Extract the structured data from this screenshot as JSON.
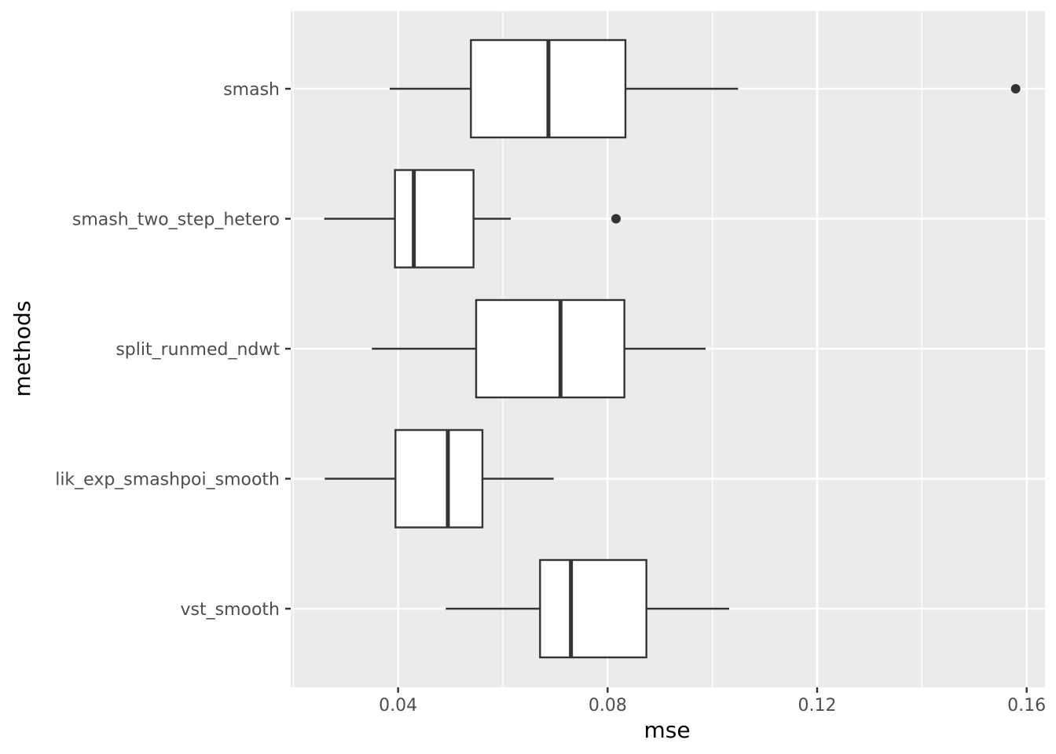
{
  "chart_data": {
    "type": "boxplot",
    "orientation": "horizontal",
    "xlabel": "mse",
    "ylabel": "methods",
    "xlim": [
      0.0195,
      0.1635
    ],
    "x_ticks": [
      0.04,
      0.08,
      0.12,
      0.16
    ],
    "x_tick_labels": [
      "0.04",
      "0.08",
      "0.12",
      "0.16"
    ],
    "grid": true,
    "categories": [
      "smash",
      "smash_two_step_hetero",
      "split_runmed_ndwt",
      "lik_exp_smashpoi_smooth",
      "vst_smooth"
    ],
    "boxes": [
      {
        "category": "smash",
        "whisker_low": 0.0384,
        "q1": 0.0539,
        "median": 0.0687,
        "q3": 0.0834,
        "whisker_high": 0.1049,
        "outliers": [
          0.1579
        ]
      },
      {
        "category": "smash_two_step_hetero",
        "whisker_low": 0.0259,
        "q1": 0.0394,
        "median": 0.043,
        "q3": 0.0544,
        "whisker_high": 0.0615,
        "outliers": [
          0.0816
        ]
      },
      {
        "category": "split_runmed_ndwt",
        "whisker_low": 0.035,
        "q1": 0.0549,
        "median": 0.071,
        "q3": 0.0832,
        "whisker_high": 0.0987,
        "outliers": []
      },
      {
        "category": "lik_exp_smashpoi_smooth",
        "whisker_low": 0.026,
        "q1": 0.0395,
        "median": 0.0495,
        "q3": 0.0561,
        "whisker_high": 0.0697,
        "outliers": []
      },
      {
        "category": "vst_smooth",
        "whisker_low": 0.0491,
        "q1": 0.0671,
        "median": 0.073,
        "q3": 0.0874,
        "whisker_high": 0.1032,
        "outliers": []
      }
    ],
    "colors": {
      "panel_background": "#ebebeb",
      "grid": "#ffffff",
      "box_fill": "#ffffff",
      "box_stroke": "#333333",
      "axis_text": "#4d4d4d"
    }
  }
}
